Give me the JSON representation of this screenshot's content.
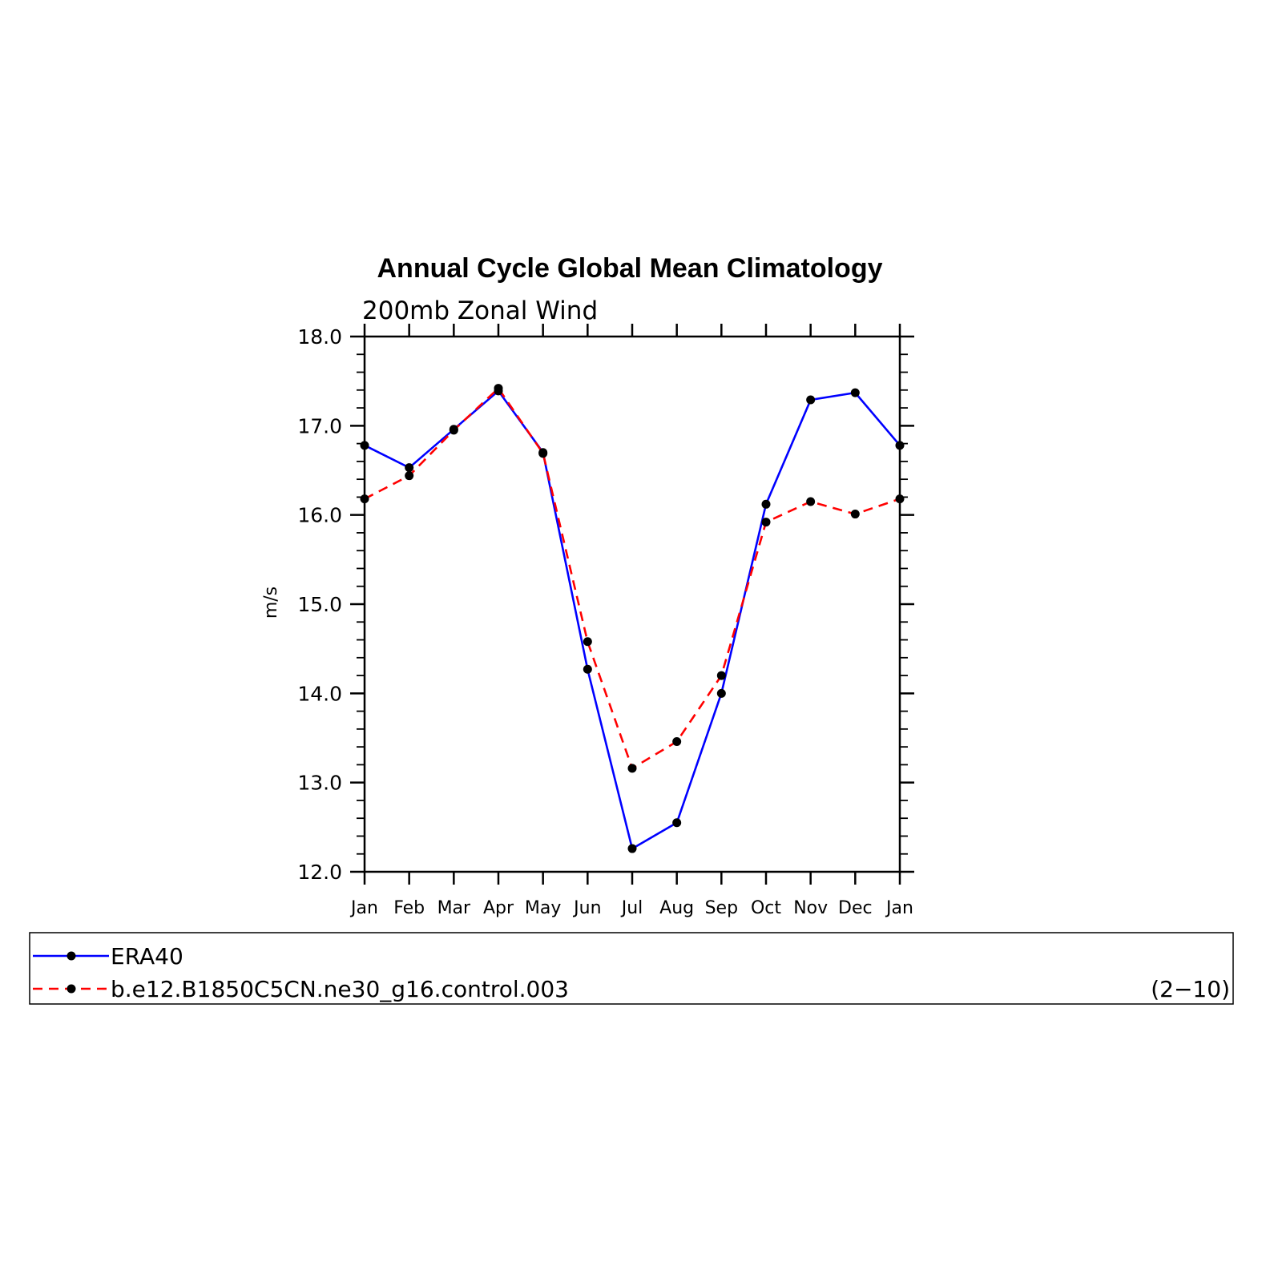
{
  "chart_data": {
    "type": "line",
    "title": "Annual Cycle Global Mean Climatology",
    "subtitle": "200mb Zonal Wind",
    "ylabel": "m/s",
    "xlabel": "",
    "categories": [
      "Jan",
      "Feb",
      "Mar",
      "Apr",
      "May",
      "Jun",
      "Jul",
      "Aug",
      "Sep",
      "Oct",
      "Nov",
      "Dec",
      "Jan"
    ],
    "ylim": [
      12.0,
      18.0
    ],
    "yticks": [
      "12.0",
      "13.0",
      "14.0",
      "15.0",
      "16.0",
      "17.0",
      "18.0"
    ],
    "grid": false,
    "series": [
      {
        "name": "ERA40",
        "color": "#0000ff",
        "dash": "solid",
        "values": [
          16.78,
          16.53,
          16.96,
          17.39,
          16.7,
          14.27,
          12.26,
          12.55,
          14.0,
          16.12,
          17.29,
          17.37,
          16.78
        ]
      },
      {
        "name": "b.e12.B1850C5CN.ne30_g16.control.003",
        "color": "#ff0000",
        "dash": "dashed",
        "values": [
          16.18,
          16.44,
          16.95,
          17.42,
          16.69,
          14.58,
          13.16,
          13.46,
          14.2,
          15.92,
          16.15,
          16.01,
          16.18
        ]
      }
    ],
    "legend_position": "bottom",
    "legend_note": "(2−10)"
  }
}
